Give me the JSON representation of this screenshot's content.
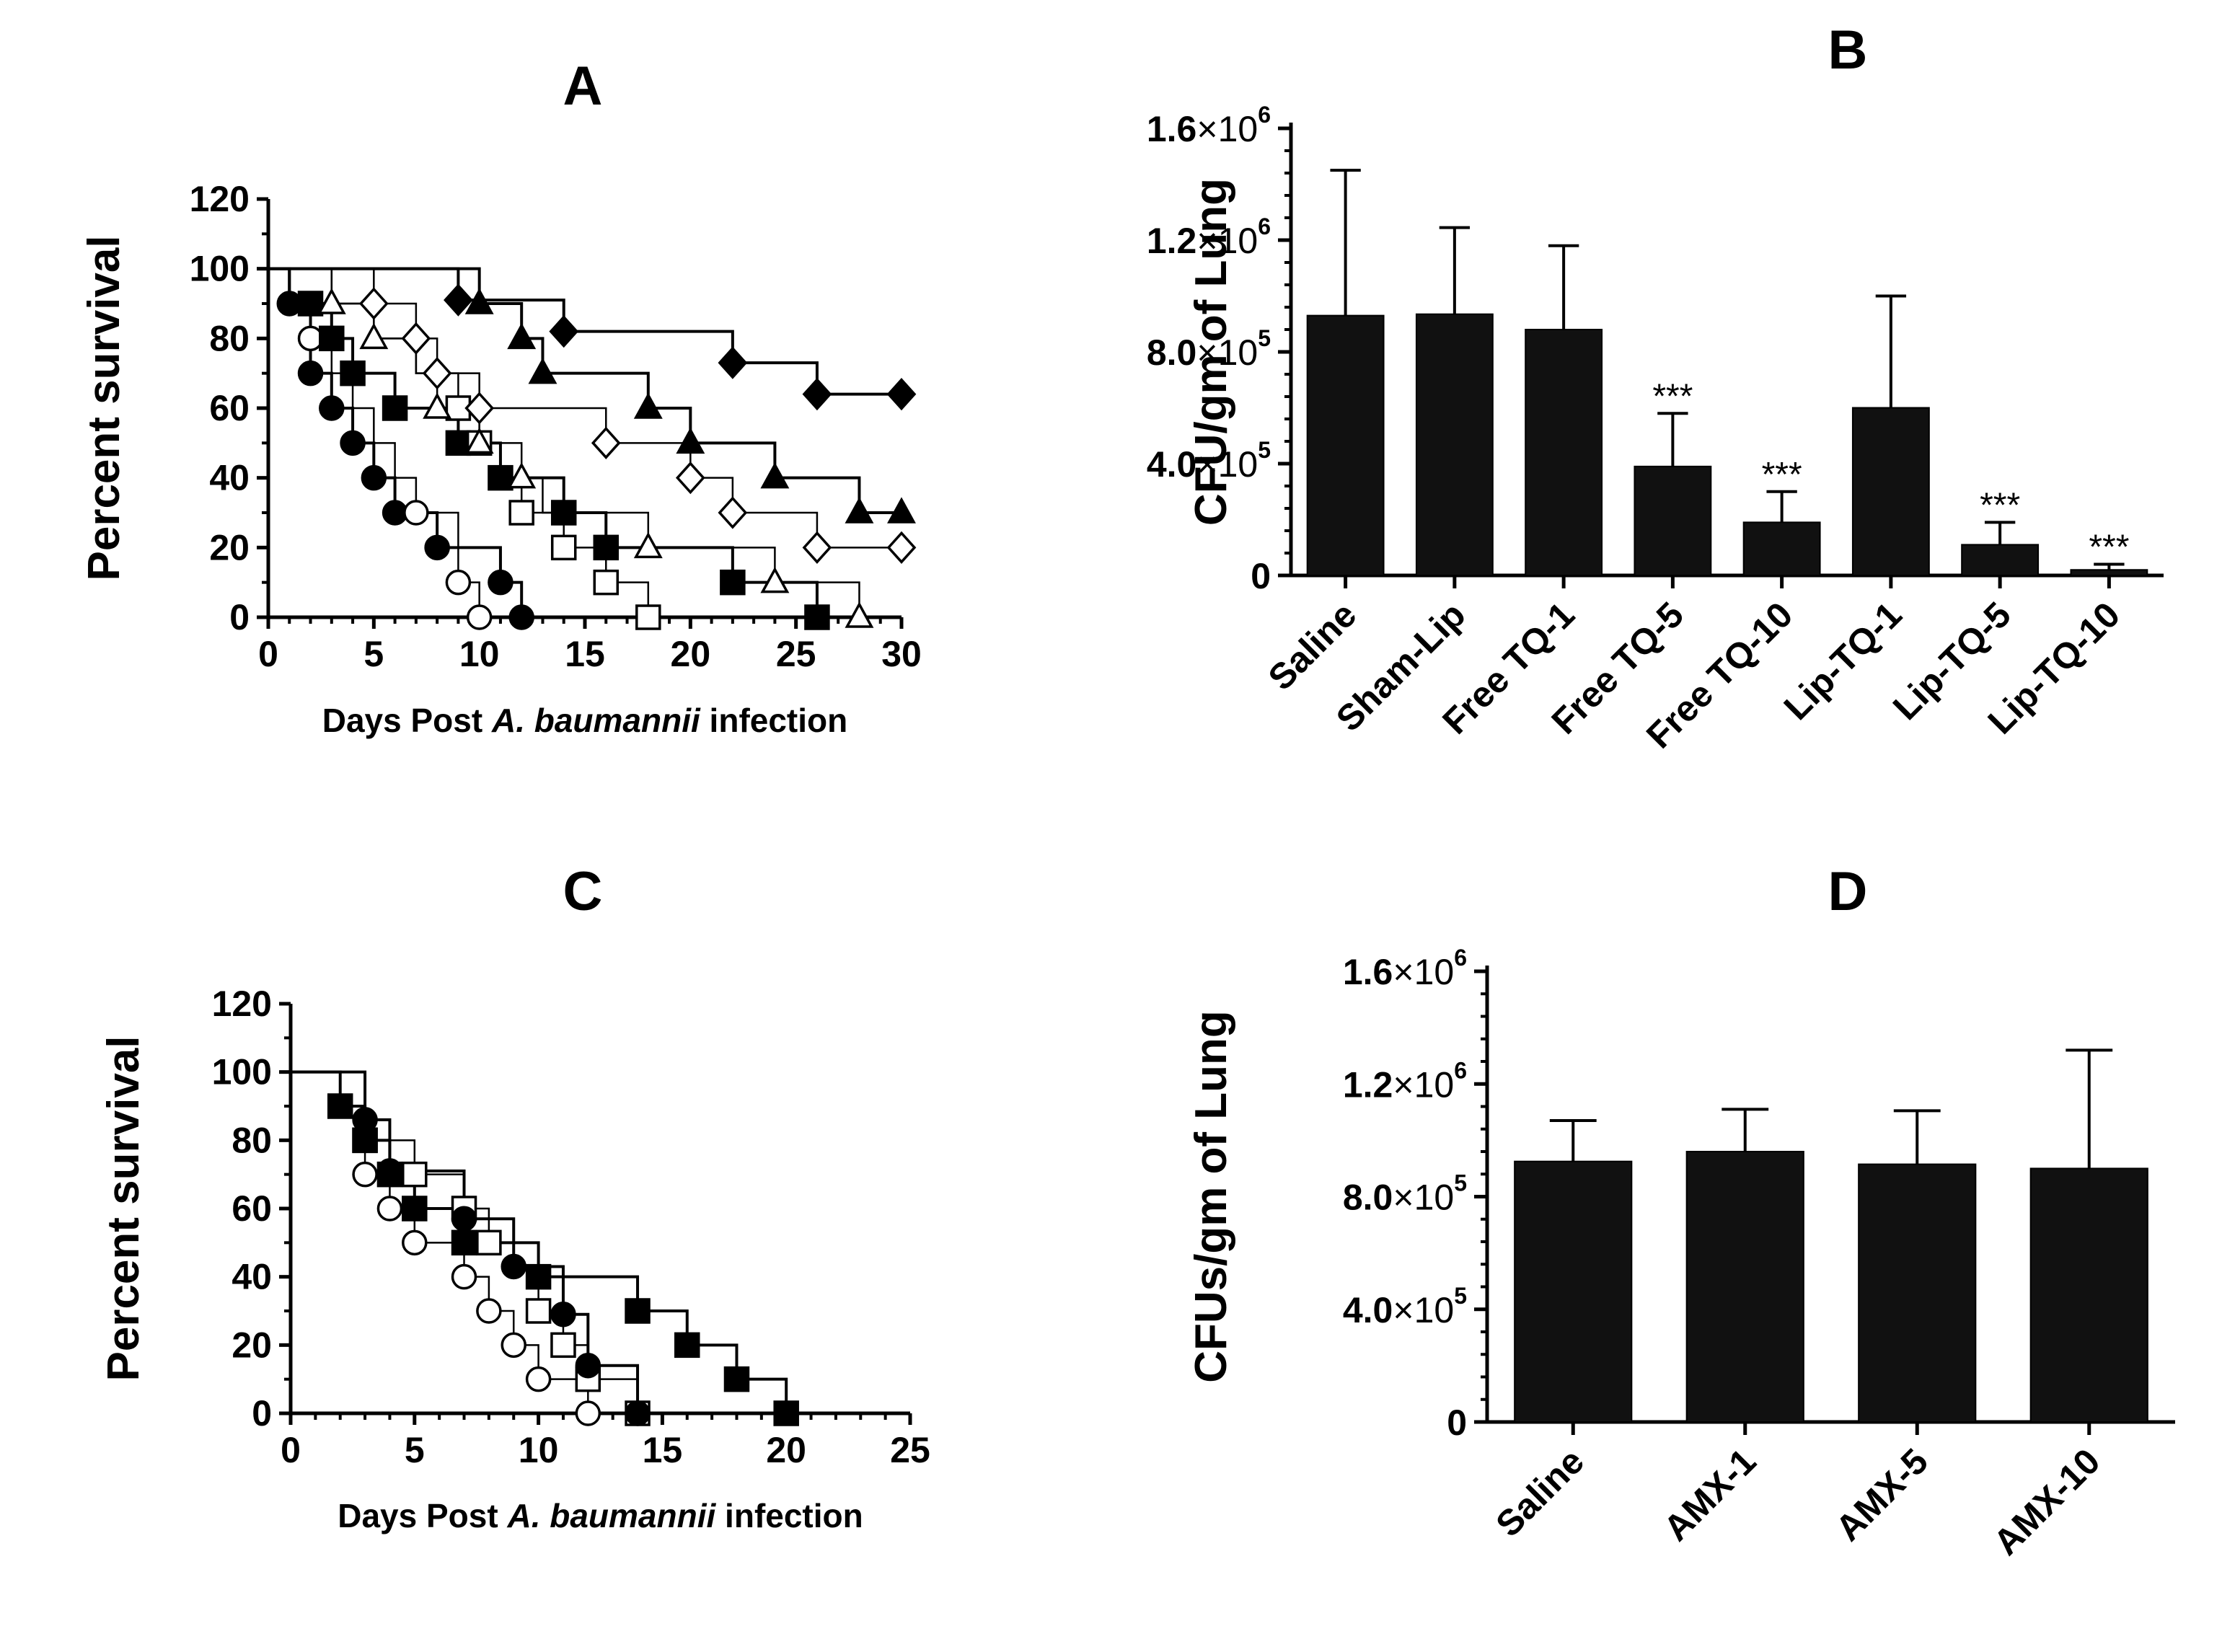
{
  "chart_data": [
    {
      "panel": "A",
      "type": "line",
      "subtype": "kaplan-meier",
      "title": "A",
      "xlabel_parts": [
        "Days Post ",
        "A. baumannii",
        " infection"
      ],
      "ylabel": "Percent survival",
      "xlim": [
        0,
        30
      ],
      "ylim": [
        0,
        120
      ],
      "xticks": [
        0,
        5,
        10,
        15,
        20,
        25,
        30
      ],
      "yticks": [
        0,
        20,
        40,
        60,
        80,
        100,
        120
      ],
      "series": [
        {
          "name": "filled-circle",
          "marker": "circle",
          "filled": true,
          "steps": [
            [
              0,
              100
            ],
            [
              1,
              90
            ],
            [
              2,
              70
            ],
            [
              3,
              60
            ],
            [
              4,
              50
            ],
            [
              5,
              40
            ],
            [
              6,
              30
            ],
            [
              8,
              20
            ],
            [
              11,
              10
            ],
            [
              12,
              0
            ]
          ],
          "markers": [
            [
              1,
              90
            ],
            [
              2,
              70
            ],
            [
              3,
              60
            ],
            [
              4,
              50
            ],
            [
              5,
              40
            ],
            [
              6,
              30
            ],
            [
              8,
              20
            ],
            [
              11,
              10
            ],
            [
              12,
              0
            ]
          ]
        },
        {
          "name": "open-circle",
          "marker": "circle",
          "filled": false,
          "steps": [
            [
              0,
              100
            ],
            [
              1,
              90
            ],
            [
              2,
              80
            ],
            [
              3,
              70
            ],
            [
              4,
              60
            ],
            [
              5,
              50
            ],
            [
              6,
              40
            ],
            [
              7,
              30
            ],
            [
              9,
              10
            ],
            [
              10,
              0
            ]
          ],
          "markers": [
            [
              2,
              80
            ],
            [
              7,
              30
            ],
            [
              9,
              10
            ],
            [
              10,
              0
            ]
          ]
        },
        {
          "name": "filled-square",
          "marker": "square",
          "filled": true,
          "steps": [
            [
              0,
              100
            ],
            [
              1,
              90
            ],
            [
              3,
              80
            ],
            [
              4,
              70
            ],
            [
              6,
              60
            ],
            [
              9,
              50
            ],
            [
              11,
              40
            ],
            [
              14,
              30
            ],
            [
              16,
              20
            ],
            [
              22,
              10
            ],
            [
              26,
              0
            ]
          ],
          "markers": [
            [
              2,
              90
            ],
            [
              3,
              80
            ],
            [
              4,
              70
            ],
            [
              6,
              60
            ],
            [
              9,
              50
            ],
            [
              11,
              40
            ],
            [
              14,
              30
            ],
            [
              16,
              20
            ],
            [
              22,
              10
            ],
            [
              26,
              0
            ]
          ]
        },
        {
          "name": "open-square",
          "marker": "square",
          "filled": false,
          "steps": [
            [
              0,
              100
            ],
            [
              3,
              90
            ],
            [
              5,
              80
            ],
            [
              7,
              70
            ],
            [
              9,
              60
            ],
            [
              10,
              50
            ],
            [
              11,
              40
            ],
            [
              12,
              30
            ],
            [
              14,
              20
            ],
            [
              16,
              10
            ],
            [
              18,
              0
            ]
          ],
          "markers": [
            [
              9,
              60
            ],
            [
              10,
              50
            ],
            [
              12,
              30
            ],
            [
              14,
              20
            ],
            [
              16,
              10
            ],
            [
              18,
              0
            ]
          ]
        },
        {
          "name": "open-triangle",
          "marker": "triangle",
          "filled": false,
          "steps": [
            [
              0,
              100
            ],
            [
              3,
              90
            ],
            [
              5,
              80
            ],
            [
              7,
              70
            ],
            [
              8,
              60
            ],
            [
              10,
              50
            ],
            [
              12,
              40
            ],
            [
              13,
              30
            ],
            [
              18,
              20
            ],
            [
              24,
              10
            ],
            [
              28,
              0
            ]
          ],
          "markers": [
            [
              3,
              90
            ],
            [
              5,
              80
            ],
            [
              8,
              60
            ],
            [
              10,
              50
            ],
            [
              12,
              40
            ],
            [
              18,
              20
            ],
            [
              24,
              10
            ],
            [
              28,
              0
            ]
          ]
        },
        {
          "name": "open-diamond",
          "marker": "diamond",
          "filled": false,
          "steps": [
            [
              0,
              100
            ],
            [
              5,
              90
            ],
            [
              7,
              80
            ],
            [
              8,
              70
            ],
            [
              10,
              60
            ],
            [
              16,
              50
            ],
            [
              20,
              40
            ],
            [
              22,
              30
            ],
            [
              26,
              20
            ],
            [
              30,
              20
            ]
          ],
          "markers": [
            [
              5,
              90
            ],
            [
              7,
              80
            ],
            [
              8,
              70
            ],
            [
              10,
              60
            ],
            [
              16,
              50
            ],
            [
              20,
              40
            ],
            [
              22,
              30
            ],
            [
              26,
              20
            ],
            [
              30,
              20
            ]
          ]
        },
        {
          "name": "filled-triangle",
          "marker": "triangle",
          "filled": true,
          "steps": [
            [
              0,
              100
            ],
            [
              10,
              90
            ],
            [
              12,
              80
            ],
            [
              13,
              70
            ],
            [
              18,
              60
            ],
            [
              20,
              50
            ],
            [
              24,
              40
            ],
            [
              28,
              30
            ],
            [
              30,
              30
            ]
          ],
          "markers": [
            [
              10,
              90
            ],
            [
              12,
              80
            ],
            [
              13,
              70
            ],
            [
              18,
              60
            ],
            [
              20,
              50
            ],
            [
              24,
              40
            ],
            [
              28,
              30
            ],
            [
              30,
              30
            ]
          ]
        },
        {
          "name": "filled-diamond",
          "marker": "diamond",
          "filled": true,
          "steps": [
            [
              0,
              100
            ],
            [
              9,
              91
            ],
            [
              14,
              82
            ],
            [
              22,
              73
            ],
            [
              26,
              64
            ],
            [
              30,
              64
            ]
          ],
          "markers": [
            [
              9,
              91
            ],
            [
              14,
              82
            ],
            [
              22,
              73
            ],
            [
              26,
              64
            ],
            [
              30,
              64
            ]
          ]
        }
      ]
    },
    {
      "panel": "B",
      "type": "bar",
      "title": "B",
      "ylabel": "CFU/gm of Lung",
      "categories": [
        "Saline",
        "Sham-Lip",
        "Free TQ-1",
        "Free TQ-5",
        "Free TQ-10",
        "Lip-TQ-1",
        "Lip-TQ-5",
        "Lip-TQ-10"
      ],
      "values": [
        930000,
        935000,
        880000,
        390000,
        190000,
        600000,
        110000,
        20000
      ],
      "errors": [
        520000,
        310000,
        300000,
        190000,
        110000,
        400000,
        80000,
        20000
      ],
      "annotations": [
        "",
        "",
        "",
        "***",
        "***",
        "",
        "***",
        "***"
      ],
      "ylim": [
        0,
        1600000
      ],
      "yticks": [
        {
          "value": 1600000,
          "mant": "1.6",
          "exp": "6"
        },
        {
          "value": 1200000,
          "mant": "1.2",
          "exp": "6"
        },
        {
          "value": 800000,
          "mant": "8.0",
          "exp": "5"
        },
        {
          "value": 400000,
          "mant": "4.0",
          "exp": "5"
        },
        {
          "value": 0,
          "mant": "0",
          "exp": ""
        }
      ],
      "times_sign": "×10"
    },
    {
      "panel": "C",
      "type": "line",
      "subtype": "kaplan-meier",
      "title": "C",
      "xlabel_parts": [
        "Days Post ",
        "A. baumannii",
        " infection"
      ],
      "ylabel": "Percent survival",
      "xlim": [
        0,
        25
      ],
      "ylim": [
        0,
        120
      ],
      "xticks": [
        0,
        5,
        10,
        15,
        20,
        25
      ],
      "yticks": [
        0,
        20,
        40,
        60,
        80,
        100,
        120
      ],
      "series": [
        {
          "name": "open-circle",
          "marker": "circle",
          "filled": false,
          "steps": [
            [
              0,
              100
            ],
            [
              2,
              90
            ],
            [
              3,
              70
            ],
            [
              4,
              60
            ],
            [
              5,
              50
            ],
            [
              7,
              40
            ],
            [
              8,
              30
            ],
            [
              9,
              20
            ],
            [
              10,
              10
            ],
            [
              12,
              0
            ]
          ],
          "markers": [
            [
              3,
              70
            ],
            [
              4,
              60
            ],
            [
              5,
              50
            ],
            [
              7,
              40
            ],
            [
              8,
              30
            ],
            [
              9,
              20
            ],
            [
              10,
              10
            ],
            [
              12,
              0
            ]
          ]
        },
        {
          "name": "open-square",
          "marker": "square",
          "filled": false,
          "steps": [
            [
              0,
              100
            ],
            [
              2,
              90
            ],
            [
              3,
              80
            ],
            [
              5,
              70
            ],
            [
              7,
              60
            ],
            [
              8,
              50
            ],
            [
              10,
              30
            ],
            [
              11,
              20
            ],
            [
              12,
              10
            ],
            [
              14,
              0
            ]
          ],
          "markers": [
            [
              3,
              80
            ],
            [
              5,
              70
            ],
            [
              7,
              60
            ],
            [
              8,
              50
            ],
            [
              10,
              30
            ],
            [
              11,
              20
            ],
            [
              12,
              10
            ],
            [
              14,
              0
            ]
          ]
        },
        {
          "name": "filled-circle",
          "marker": "circle",
          "filled": true,
          "steps": [
            [
              0,
              100
            ],
            [
              3,
              86
            ],
            [
              4,
              71
            ],
            [
              7,
              57
            ],
            [
              9,
              43
            ],
            [
              11,
              29
            ],
            [
              12,
              14
            ],
            [
              14,
              0
            ]
          ],
          "markers": [
            [
              3,
              86
            ],
            [
              4,
              71
            ],
            [
              7,
              57
            ],
            [
              9,
              43
            ],
            [
              11,
              29
            ],
            [
              12,
              14
            ],
            [
              14,
              0
            ]
          ]
        },
        {
          "name": "filled-square",
          "marker": "square",
          "filled": true,
          "steps": [
            [
              0,
              100
            ],
            [
              2,
              90
            ],
            [
              3,
              80
            ],
            [
              4,
              70
            ],
            [
              5,
              60
            ],
            [
              7,
              50
            ],
            [
              10,
              40
            ],
            [
              14,
              30
            ],
            [
              16,
              20
            ],
            [
              18,
              10
            ],
            [
              20,
              0
            ]
          ],
          "markers": [
            [
              2,
              90
            ],
            [
              3,
              80
            ],
            [
              4,
              70
            ],
            [
              5,
              60
            ],
            [
              7,
              50
            ],
            [
              10,
              40
            ],
            [
              14,
              30
            ],
            [
              16,
              20
            ],
            [
              18,
              10
            ],
            [
              20,
              0
            ]
          ]
        }
      ]
    },
    {
      "panel": "D",
      "type": "bar",
      "title": "D",
      "ylabel": "CFUs/gm of Lung",
      "categories": [
        "Saline",
        "AMX-1",
        "AMX-5",
        "AMX-10"
      ],
      "values": [
        925000,
        960000,
        915000,
        900000
      ],
      "errors": [
        145000,
        150000,
        190000,
        420000
      ],
      "annotations": [
        "",
        "",
        "",
        ""
      ],
      "ylim": [
        0,
        1600000
      ],
      "yticks": [
        {
          "value": 1600000,
          "mant": "1.6",
          "exp": "6"
        },
        {
          "value": 1200000,
          "mant": "1.2",
          "exp": "6"
        },
        {
          "value": 800000,
          "mant": "8.0",
          "exp": "5"
        },
        {
          "value": 400000,
          "mant": "4.0",
          "exp": "5"
        },
        {
          "value": 0,
          "mant": "0",
          "exp": ""
        }
      ],
      "times_sign": "×10"
    }
  ]
}
